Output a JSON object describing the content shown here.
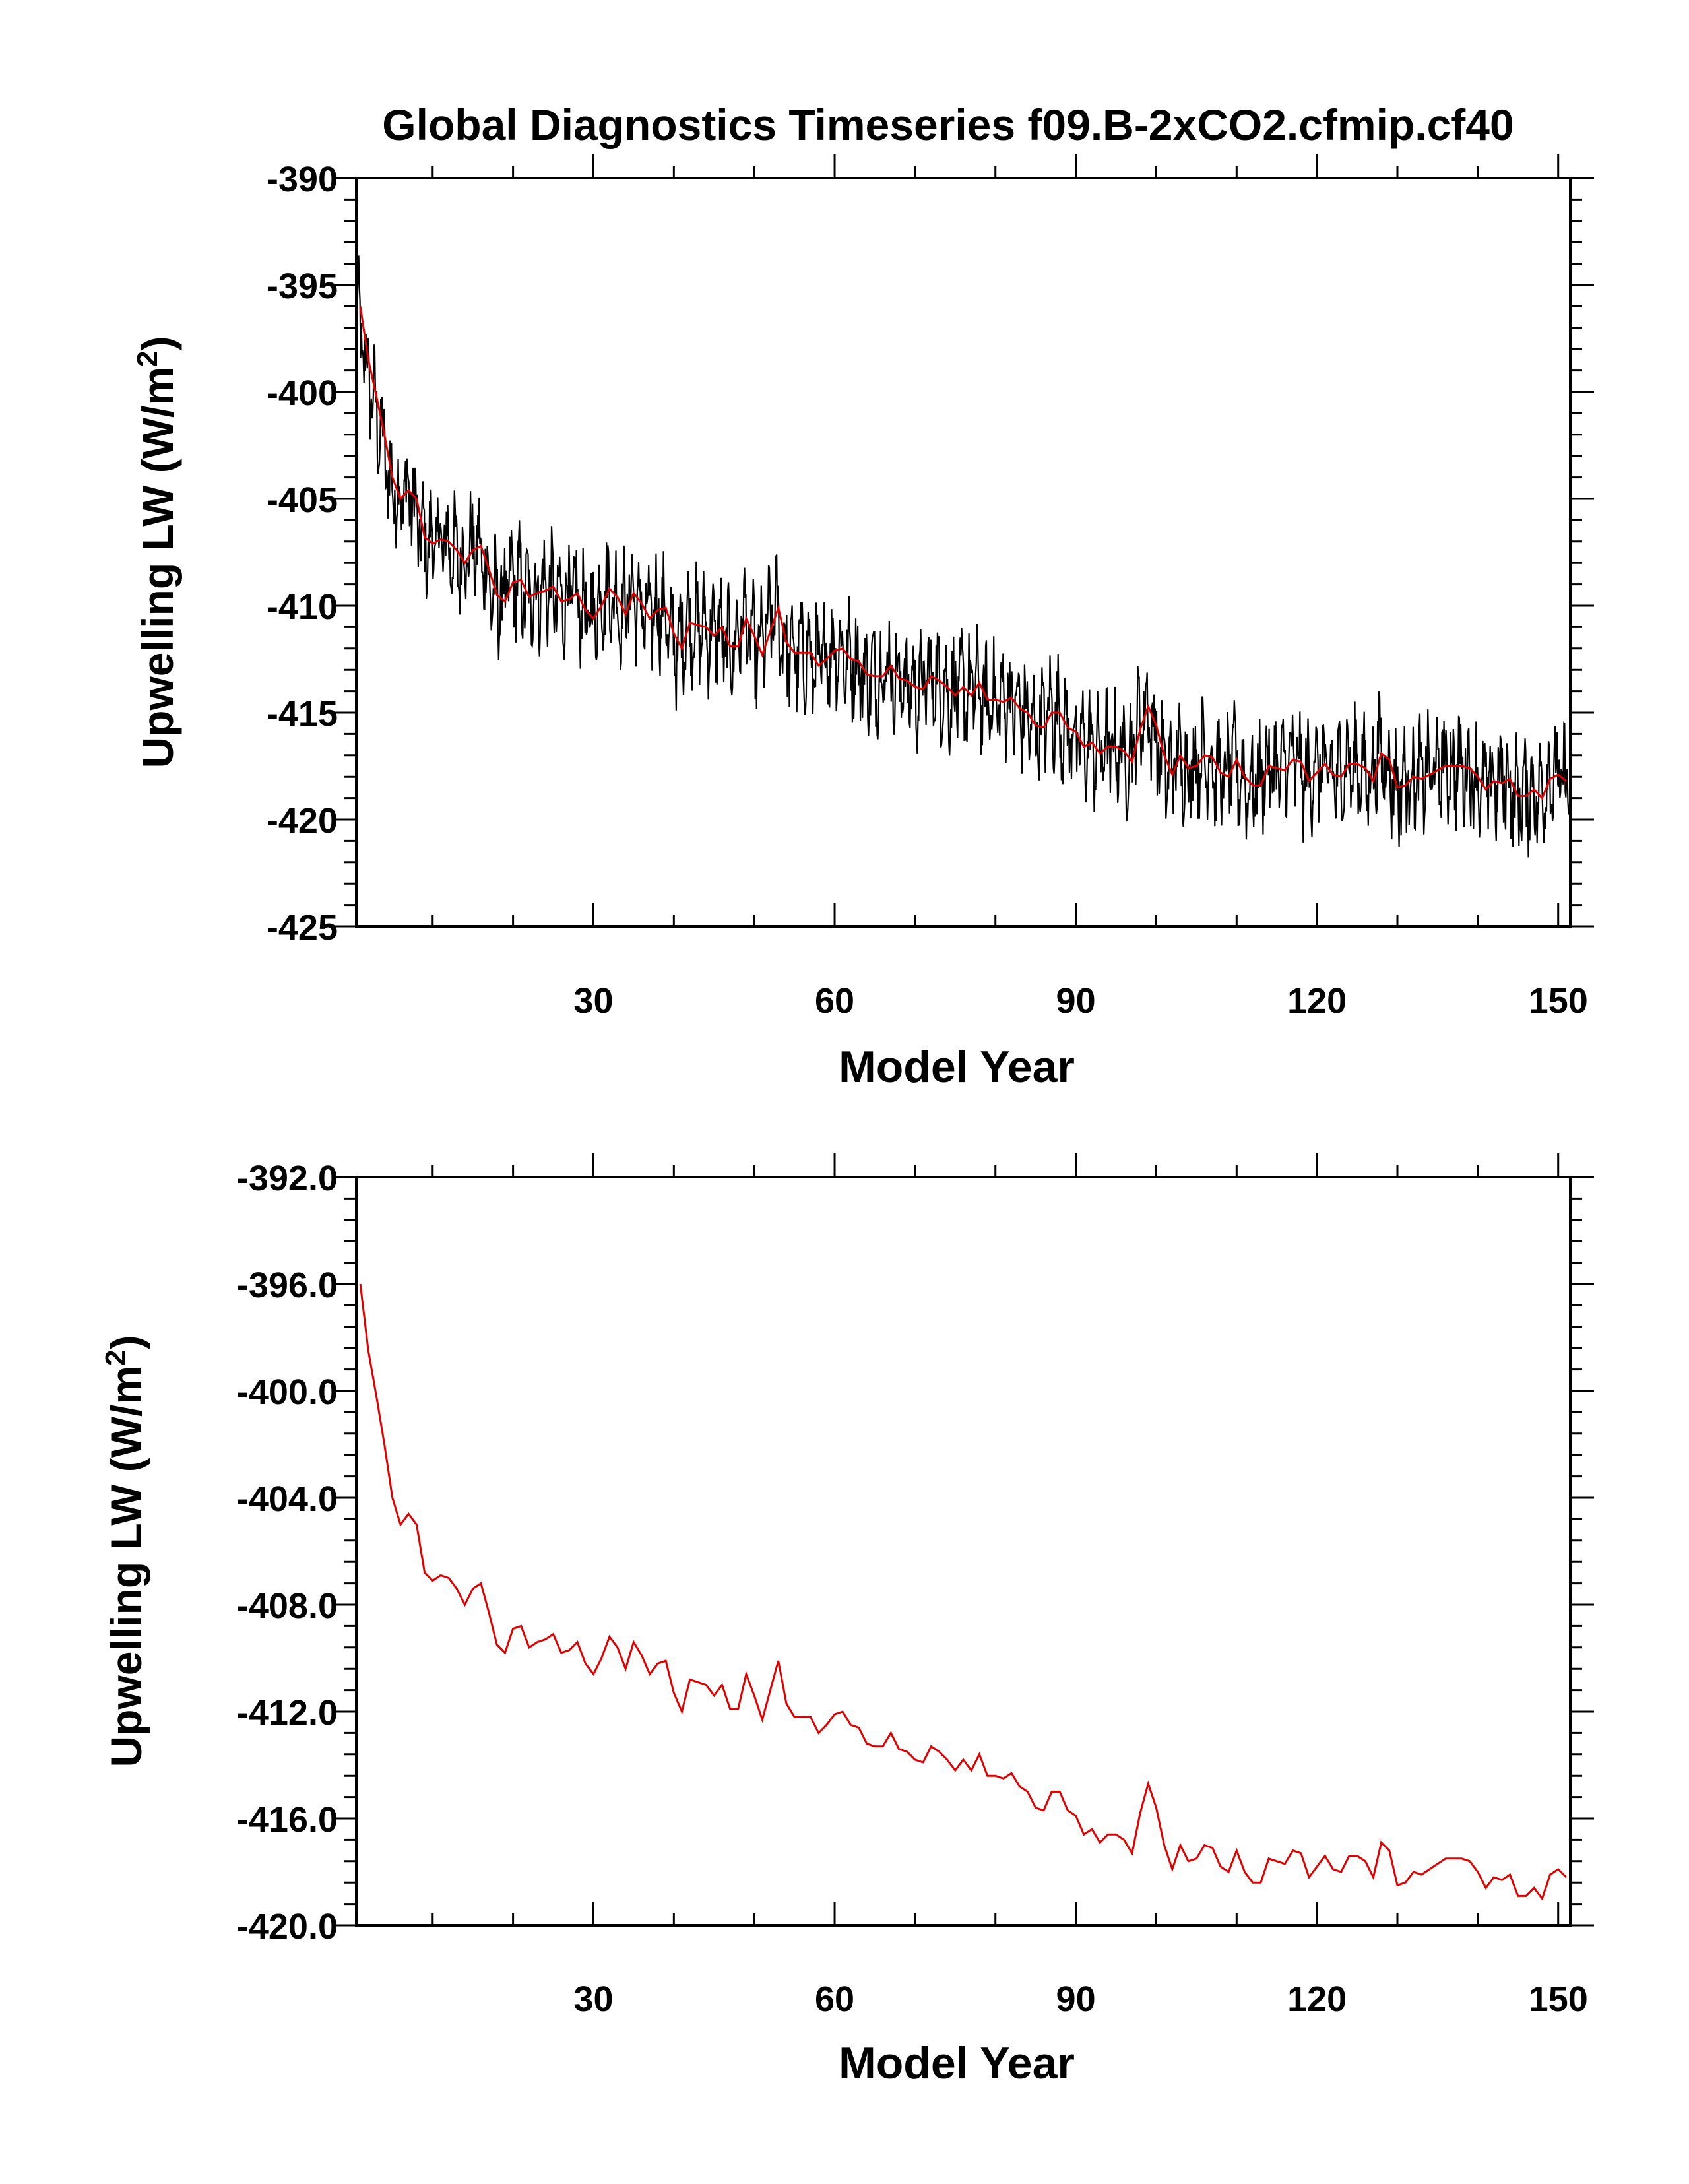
{
  "title": "Global Diagnostics Timeseries f09.B-2xCO2.cfmip.cf40",
  "colors": {
    "monthly": "#000000",
    "annual": "#e00000",
    "axes": "#000000"
  },
  "chart_data": [
    {
      "type": "line",
      "title": "Global Diagnostics Timeseries f09.B-2xCO2.cfmip.cf40",
      "xlabel": "Model Year",
      "ylabel": "Upwelling LW (W/m²)",
      "ylabel_main": "Upwelling LW (W/m",
      "ylabel_sup": "2",
      "ylabel_close": ")",
      "xlim": [
        0.5,
        151.5
      ],
      "ylim": [
        -425,
        -390
      ],
      "xticks": [
        30,
        60,
        90,
        120,
        150
      ],
      "xtick_labels": [
        "30",
        "60",
        "90",
        "120",
        "150"
      ],
      "yticks": [
        -390,
        -395,
        -400,
        -405,
        -410,
        -415,
        -420,
        -425
      ],
      "ytick_labels": [
        "-390",
        "-395",
        "-400",
        "-405",
        "-410",
        "-415",
        "-420",
        "-425"
      ],
      "grid": false,
      "series": [
        {
          "color": "#000000",
          "kind": "monthly",
          "monthly_range_around_annual": [
            -3.5,
            3.0
          ],
          "note_values": "monthly values oscillate around annual mean"
        },
        {
          "color": "#e00000",
          "kind": "annual",
          "x_start": 1,
          "values": [
            -396.0,
            -398.5,
            -400.2,
            -402.0,
            -404.0,
            -405.0,
            -404.6,
            -405.0,
            -406.8,
            -407.1,
            -406.9,
            -407.0,
            -407.4,
            -408.0,
            -407.4,
            -407.2,
            -408.3,
            -409.5,
            -409.8,
            -408.9,
            -408.8,
            -409.6,
            -409.4,
            -409.3,
            -409.1,
            -409.8,
            -409.7,
            -409.4,
            -410.2,
            -410.6,
            -410.0,
            -409.2,
            -409.6,
            -410.4,
            -409.4,
            -409.9,
            -410.6,
            -410.2,
            -410.1,
            -411.3,
            -412.0,
            -410.8,
            -410.9,
            -411.0,
            -411.4,
            -411.0,
            -411.9,
            -411.9,
            -410.6,
            -411.4,
            -412.3,
            -411.2,
            -410.1,
            -411.7,
            -412.2,
            -412.2,
            -412.2,
            -412.8,
            -412.5,
            -412.1,
            -412.0,
            -412.5,
            -412.6,
            -413.2,
            -413.3,
            -413.3,
            -412.8,
            -413.4,
            -413.5,
            -413.8,
            -413.9,
            -413.3,
            -413.5,
            -413.8,
            -414.2,
            -413.8,
            -414.2,
            -413.6,
            -414.4,
            -414.4,
            -414.5,
            -414.3,
            -414.8,
            -415.0,
            -415.6,
            -415.7,
            -415.0,
            -415.0,
            -415.7,
            -415.9,
            -416.6,
            -416.4,
            -416.9,
            -416.6,
            -416.6,
            -416.8,
            -417.3,
            -415.8,
            -414.7,
            -415.6,
            -417.0,
            -417.9,
            -417.0,
            -417.6,
            -417.5,
            -417.0,
            -417.1,
            -417.8,
            -418.0,
            -417.2,
            -418.0,
            -418.4,
            -418.4,
            -417.5,
            -417.6,
            -417.7,
            -417.2,
            -417.3,
            -418.2,
            -417.8,
            -417.4,
            -417.9,
            -418.0,
            -417.4,
            -417.4,
            -417.6,
            -418.2,
            -416.9,
            -417.2,
            -418.5,
            -418.4,
            -418.0,
            -418.1,
            -417.9,
            -417.7,
            -417.5,
            -417.5,
            -417.5,
            -417.6,
            -418.0,
            -418.6,
            -418.2,
            -418.3,
            -418.1,
            -418.9,
            -418.9,
            -418.6,
            -419.0,
            -418.1,
            -417.9,
            -418.2
          ]
        }
      ]
    },
    {
      "type": "line",
      "title": "",
      "xlabel": "Model Year",
      "ylabel": "Upwelling LW (W/m²)",
      "ylabel_main": "Upwelling LW (W/m",
      "ylabel_sup": "2",
      "ylabel_close": ")",
      "xlim": [
        0.5,
        151.5
      ],
      "ylim": [
        -420,
        -392
      ],
      "xticks": [
        30,
        60,
        90,
        120,
        150
      ],
      "xtick_labels": [
        "30",
        "60",
        "90",
        "120",
        "150"
      ],
      "yticks": [
        -392,
        -396,
        -400,
        -404,
        -408,
        -412,
        -416,
        -420
      ],
      "ytick_labels": [
        "-392.0",
        "-396.0",
        "-400.0",
        "-404.0",
        "-408.0",
        "-412.0",
        "-416.0",
        "-420.0"
      ],
      "grid": false,
      "series": [
        {
          "color": "#e00000",
          "kind": "annual",
          "x_start": 1,
          "values": [
            -396.0,
            -398.5,
            -400.2,
            -402.0,
            -404.0,
            -405.0,
            -404.6,
            -405.0,
            -406.8,
            -407.1,
            -406.9,
            -407.0,
            -407.4,
            -408.0,
            -407.4,
            -407.2,
            -408.3,
            -409.5,
            -409.8,
            -408.9,
            -408.8,
            -409.6,
            -409.4,
            -409.3,
            -409.1,
            -409.8,
            -409.7,
            -409.4,
            -410.2,
            -410.6,
            -410.0,
            -409.2,
            -409.6,
            -410.4,
            -409.4,
            -409.9,
            -410.6,
            -410.2,
            -410.1,
            -411.3,
            -412.0,
            -410.8,
            -410.9,
            -411.0,
            -411.4,
            -411.0,
            -411.9,
            -411.9,
            -410.6,
            -411.4,
            -412.3,
            -411.2,
            -410.1,
            -411.7,
            -412.2,
            -412.2,
            -412.2,
            -412.8,
            -412.5,
            -412.1,
            -412.0,
            -412.5,
            -412.6,
            -413.2,
            -413.3,
            -413.3,
            -412.8,
            -413.4,
            -413.5,
            -413.8,
            -413.9,
            -413.3,
            -413.5,
            -413.8,
            -414.2,
            -413.8,
            -414.2,
            -413.6,
            -414.4,
            -414.4,
            -414.5,
            -414.3,
            -414.8,
            -415.0,
            -415.6,
            -415.7,
            -415.0,
            -415.0,
            -415.7,
            -415.9,
            -416.6,
            -416.4,
            -416.9,
            -416.6,
            -416.6,
            -416.8,
            -417.3,
            -415.8,
            -414.7,
            -415.6,
            -417.0,
            -417.9,
            -417.0,
            -417.6,
            -417.5,
            -417.0,
            -417.1,
            -417.8,
            -418.0,
            -417.2,
            -418.0,
            -418.4,
            -418.4,
            -417.5,
            -417.6,
            -417.7,
            -417.2,
            -417.3,
            -418.2,
            -417.8,
            -417.4,
            -417.9,
            -418.0,
            -417.4,
            -417.4,
            -417.6,
            -418.2,
            -416.9,
            -417.2,
            -418.5,
            -418.4,
            -418.0,
            -418.1,
            -417.9,
            -417.7,
            -417.5,
            -417.5,
            -417.5,
            -417.6,
            -418.0,
            -418.6,
            -418.2,
            -418.3,
            -418.1,
            -418.9,
            -418.9,
            -418.6,
            -419.0,
            -418.1,
            -417.9,
            -418.2
          ]
        }
      ]
    }
  ]
}
